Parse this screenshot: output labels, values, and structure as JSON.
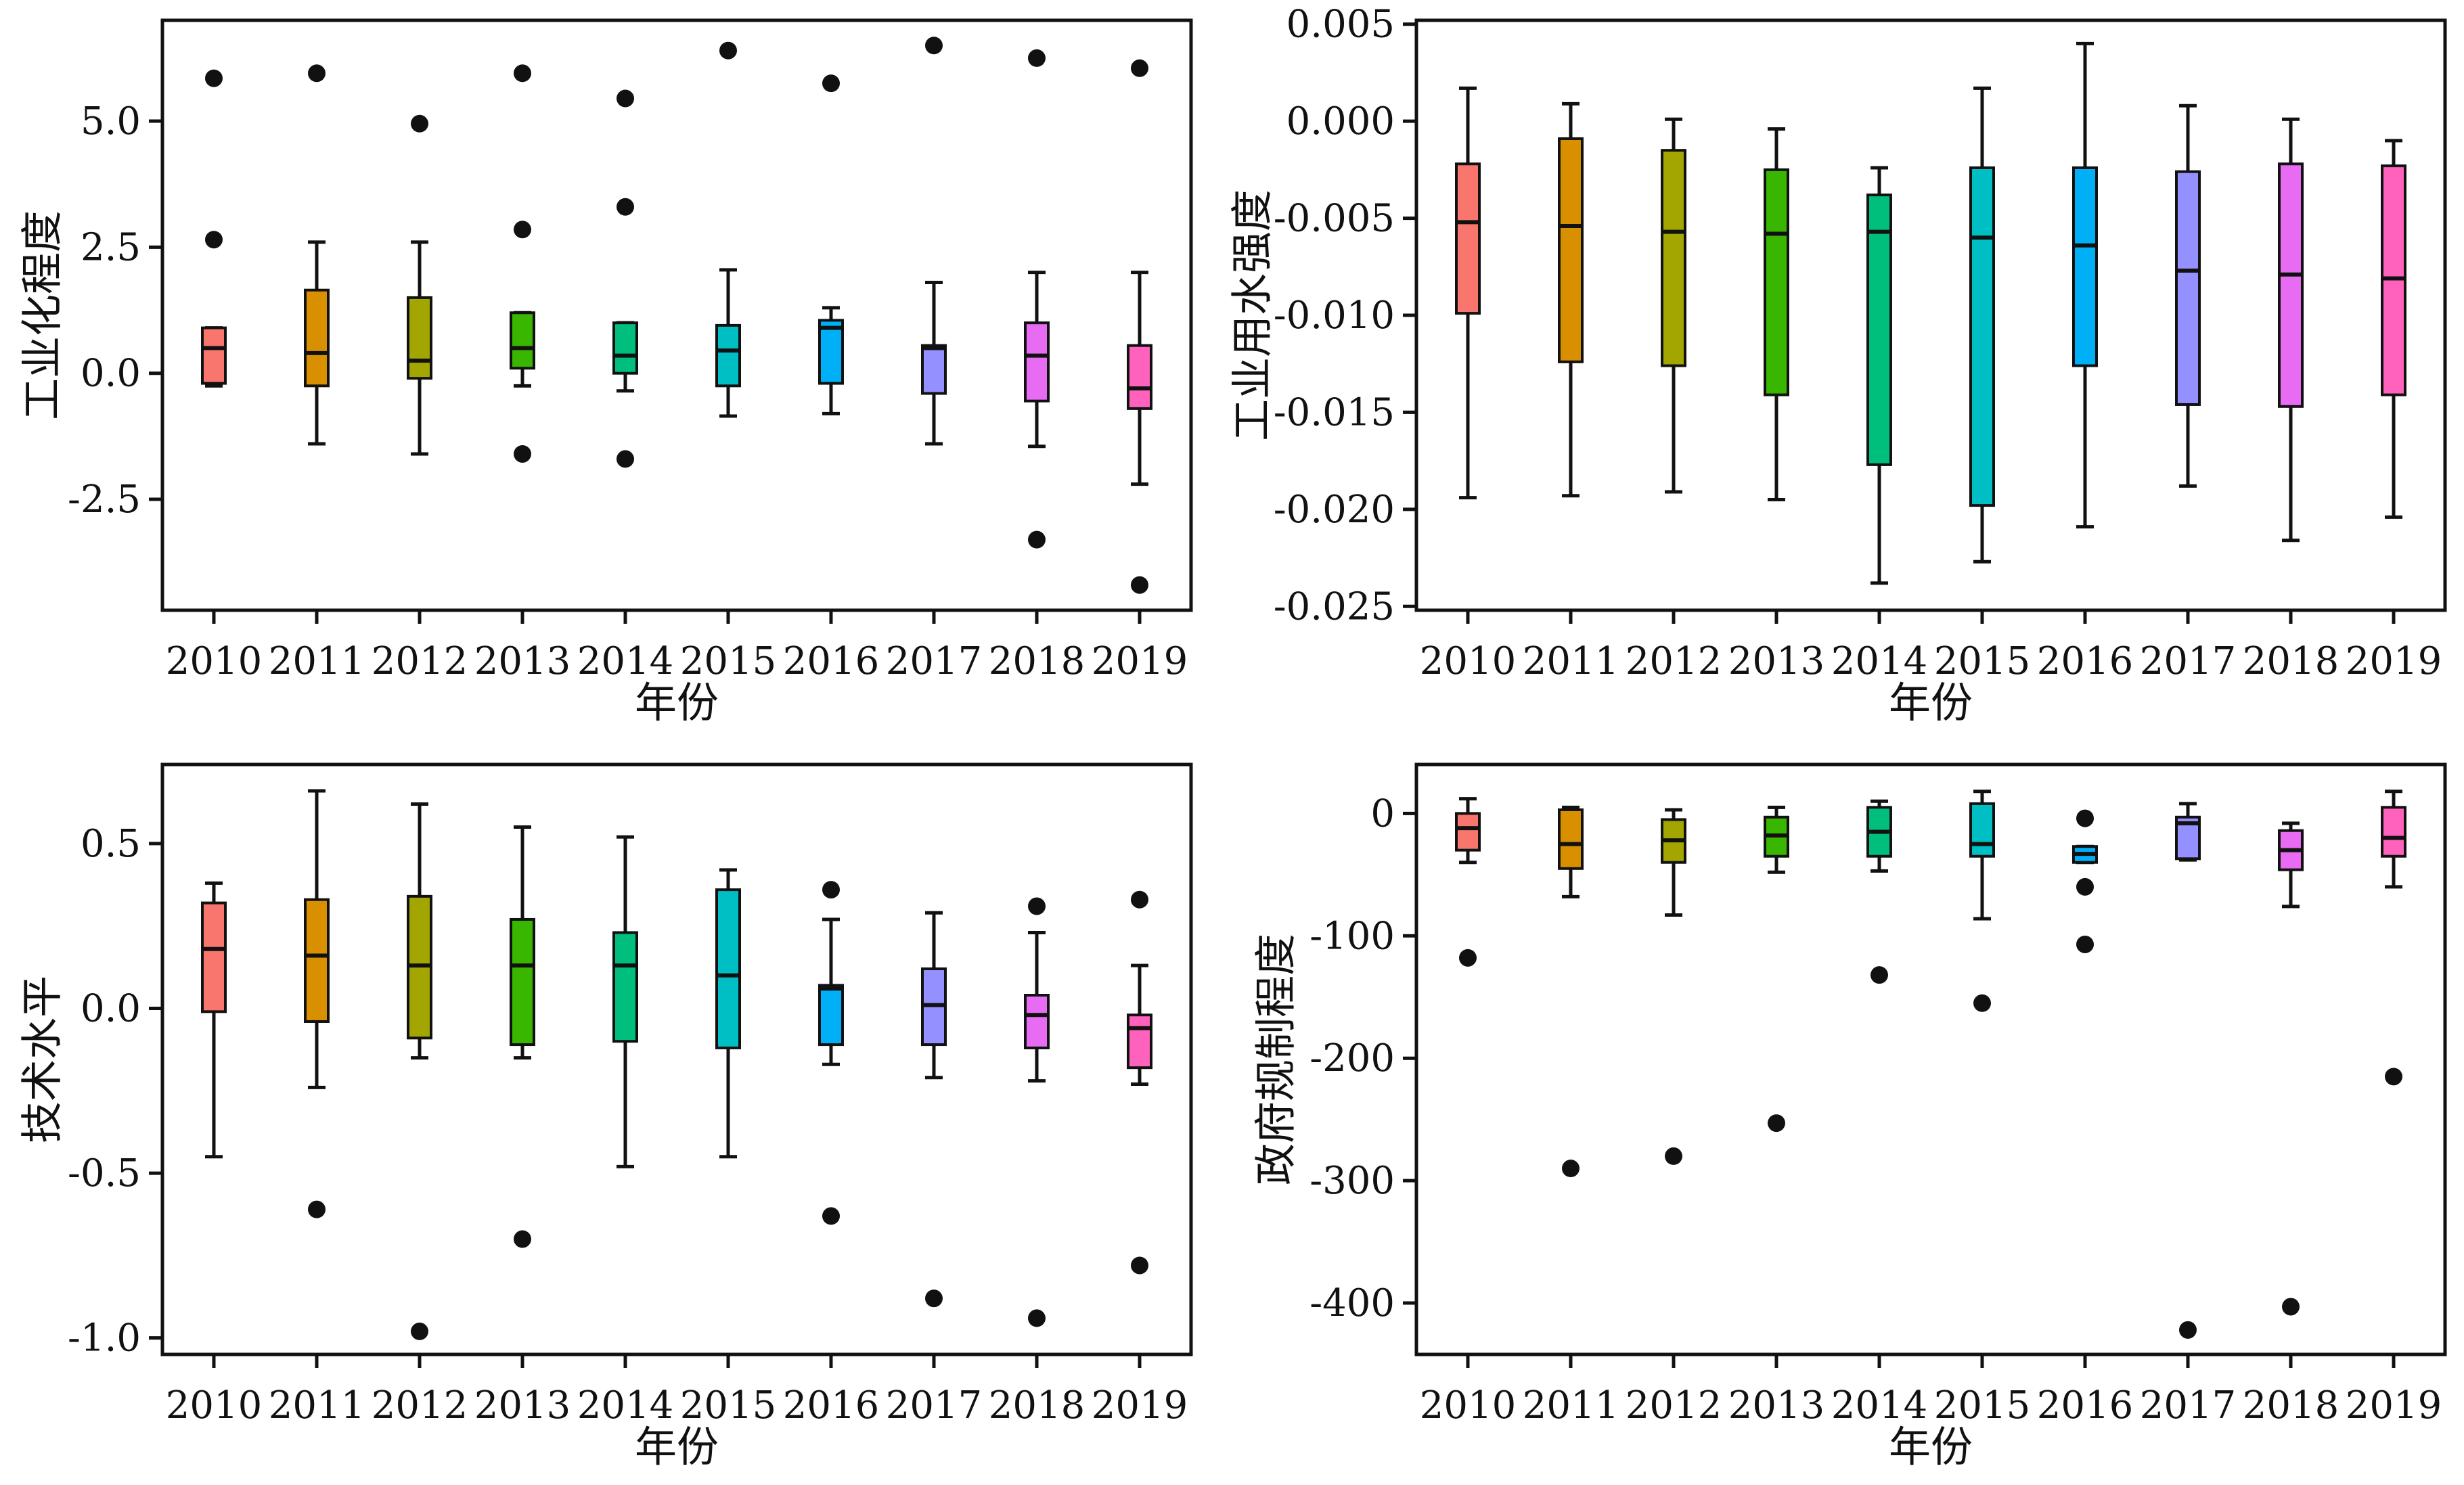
{
  "figure": {
    "palette": [
      "#F8766D",
      "#D89000",
      "#A3A500",
      "#39B600",
      "#00BF7D",
      "#00BFC4",
      "#00B0F6",
      "#9590FF",
      "#E76BF3",
      "#FF62BC"
    ]
  },
  "chart_data": [
    {
      "type": "box",
      "xlabel": "年份",
      "ylabel": "工业化程度",
      "categories": [
        "2010",
        "2011",
        "2012",
        "2013",
        "2014",
        "2015",
        "2016",
        "2017",
        "2018",
        "2019"
      ],
      "ylim": [
        -4.7,
        7.0
      ],
      "yticks": [
        -2.5,
        0.0,
        2.5,
        5.0
      ],
      "ytick_labels": [
        "-2.5",
        "0.0",
        "2.5",
        "5.0"
      ],
      "boxes": [
        {
          "whislo": -0.25,
          "q1": -0.2,
          "med": 0.5,
          "q3": 0.9,
          "whishi": 0.9,
          "fliers": [
            2.65,
            5.85
          ]
        },
        {
          "whislo": -1.4,
          "q1": -0.25,
          "med": 0.4,
          "q3": 1.65,
          "whishi": 2.6,
          "fliers": [
            5.95
          ]
        },
        {
          "whislo": -1.6,
          "q1": -0.1,
          "med": 0.25,
          "q3": 1.5,
          "whishi": 2.6,
          "fliers": [
            4.95
          ]
        },
        {
          "whislo": -0.25,
          "q1": 0.1,
          "med": 0.5,
          "q3": 1.2,
          "whishi": 1.2,
          "fliers": [
            -1.6,
            2.85,
            5.95
          ]
        },
        {
          "whislo": -0.35,
          "q1": 0.0,
          "med": 0.35,
          "q3": 1.0,
          "whishi": 1.0,
          "fliers": [
            -1.7,
            3.3,
            5.45
          ]
        },
        {
          "whislo": -0.85,
          "q1": -0.25,
          "med": 0.45,
          "q3": 0.95,
          "whishi": 2.05,
          "fliers": [
            6.4
          ]
        },
        {
          "whislo": -0.8,
          "q1": -0.2,
          "med": 0.9,
          "q3": 1.05,
          "whishi": 1.3,
          "fliers": [
            5.75
          ]
        },
        {
          "whislo": -1.4,
          "q1": -0.4,
          "med": 0.5,
          "q3": 0.55,
          "whishi": 1.8,
          "fliers": [
            6.5
          ]
        },
        {
          "whislo": -1.45,
          "q1": -0.55,
          "med": 0.35,
          "q3": 1.0,
          "whishi": 2.0,
          "fliers": [
            -3.3,
            6.25
          ]
        },
        {
          "whislo": -2.2,
          "q1": -0.7,
          "med": -0.3,
          "q3": 0.55,
          "whishi": 2.0,
          "fliers": [
            -4.2,
            6.05
          ]
        }
      ]
    },
    {
      "type": "box",
      "xlabel": "年份",
      "ylabel": "工业用水强度",
      "categories": [
        "2010",
        "2011",
        "2012",
        "2013",
        "2014",
        "2015",
        "2016",
        "2017",
        "2018",
        "2019"
      ],
      "ylim": [
        -0.0252,
        0.0052
      ],
      "yticks": [
        -0.025,
        -0.02,
        -0.015,
        -0.01,
        -0.005,
        0.0,
        0.005
      ],
      "ytick_labels": [
        "-0.025",
        "-0.020",
        "-0.015",
        "-0.010",
        "-0.005",
        "0.000",
        "0.005"
      ],
      "boxes": [
        {
          "whislo": -0.0194,
          "q1": -0.0099,
          "med": -0.0052,
          "q3": -0.0022,
          "whishi": 0.0017,
          "fliers": []
        },
        {
          "whislo": -0.0193,
          "q1": -0.0124,
          "med": -0.0054,
          "q3": -0.0009,
          "whishi": 0.0009,
          "fliers": []
        },
        {
          "whislo": -0.0191,
          "q1": -0.0126,
          "med": -0.0057,
          "q3": -0.0015,
          "whishi": 0.0001,
          "fliers": []
        },
        {
          "whislo": -0.0195,
          "q1": -0.0141,
          "med": -0.0058,
          "q3": -0.0025,
          "whishi": -0.0004,
          "fliers": []
        },
        {
          "whislo": -0.0238,
          "q1": -0.0177,
          "med": -0.0057,
          "q3": -0.0038,
          "whishi": -0.0024,
          "fliers": []
        },
        {
          "whislo": -0.0227,
          "q1": -0.0198,
          "med": -0.006,
          "q3": -0.0024,
          "whishi": 0.0017,
          "fliers": []
        },
        {
          "whislo": -0.0209,
          "q1": -0.0126,
          "med": -0.0064,
          "q3": -0.0024,
          "whishi": 0.004,
          "fliers": []
        },
        {
          "whislo": -0.0188,
          "q1": -0.0146,
          "med": -0.0077,
          "q3": -0.0026,
          "whishi": 0.0008,
          "fliers": []
        },
        {
          "whislo": -0.0216,
          "q1": -0.0147,
          "med": -0.0079,
          "q3": -0.0022,
          "whishi": 0.0001,
          "fliers": []
        },
        {
          "whislo": -0.0204,
          "q1": -0.0141,
          "med": -0.0081,
          "q3": -0.0023,
          "whishi": -0.001,
          "fliers": []
        }
      ]
    },
    {
      "type": "box",
      "xlabel": "年份",
      "ylabel": "技术水平",
      "categories": [
        "2010",
        "2011",
        "2012",
        "2013",
        "2014",
        "2015",
        "2016",
        "2017",
        "2018",
        "2019"
      ],
      "ylim": [
        -1.05,
        0.74
      ],
      "yticks": [
        -1.0,
        -0.5,
        0.0,
        0.5
      ],
      "ytick_labels": [
        "-1.0",
        "-0.5",
        "0.0",
        "0.5"
      ],
      "boxes": [
        {
          "whislo": -0.45,
          "q1": -0.01,
          "med": 0.18,
          "q3": 0.32,
          "whishi": 0.38,
          "fliers": []
        },
        {
          "whislo": -0.24,
          "q1": -0.04,
          "med": 0.16,
          "q3": 0.33,
          "whishi": 0.66,
          "fliers": [
            -0.61
          ]
        },
        {
          "whislo": -0.15,
          "q1": -0.09,
          "med": 0.13,
          "q3": 0.34,
          "whishi": 0.62,
          "fliers": [
            -0.98
          ]
        },
        {
          "whislo": -0.15,
          "q1": -0.11,
          "med": 0.13,
          "q3": 0.27,
          "whishi": 0.55,
          "fliers": [
            -0.7
          ]
        },
        {
          "whislo": -0.48,
          "q1": -0.1,
          "med": 0.13,
          "q3": 0.23,
          "whishi": 0.52,
          "fliers": []
        },
        {
          "whislo": -0.45,
          "q1": -0.12,
          "med": 0.1,
          "q3": 0.36,
          "whishi": 0.42,
          "fliers": []
        },
        {
          "whislo": -0.17,
          "q1": -0.11,
          "med": 0.06,
          "q3": 0.07,
          "whishi": 0.27,
          "fliers": [
            -0.63,
            0.36
          ]
        },
        {
          "whislo": -0.21,
          "q1": -0.11,
          "med": 0.01,
          "q3": 0.12,
          "whishi": 0.29,
          "fliers": [
            -0.88
          ]
        },
        {
          "whislo": -0.22,
          "q1": -0.12,
          "med": -0.02,
          "q3": 0.04,
          "whishi": 0.23,
          "fliers": [
            -0.94,
            0.31
          ]
        },
        {
          "whislo": -0.23,
          "q1": -0.18,
          "med": -0.06,
          "q3": -0.02,
          "whishi": 0.13,
          "fliers": [
            -0.78,
            0.33
          ]
        }
      ]
    },
    {
      "type": "box",
      "xlabel": "年份",
      "ylabel": "政府规制程度",
      "categories": [
        "2010",
        "2011",
        "2012",
        "2013",
        "2014",
        "2015",
        "2016",
        "2017",
        "2018",
        "2019"
      ],
      "ylim": [
        -442,
        40
      ],
      "yticks": [
        -400,
        -300,
        -200,
        -100,
        0
      ],
      "ytick_labels": [
        "-400",
        "-300",
        "-200",
        "-100",
        "0"
      ],
      "boxes": [
        {
          "whislo": -40,
          "q1": -30,
          "med": -12,
          "q3": 0,
          "whishi": 12,
          "fliers": [
            -118
          ]
        },
        {
          "whislo": -68,
          "q1": -45,
          "med": -25,
          "q3": 3,
          "whishi": 5,
          "fliers": [
            -290
          ]
        },
        {
          "whislo": -83,
          "q1": -40,
          "med": -22,
          "q3": -5,
          "whishi": 3,
          "fliers": [
            -280
          ]
        },
        {
          "whislo": -48,
          "q1": -35,
          "med": -18,
          "q3": -3,
          "whishi": 5,
          "fliers": [
            -253
          ]
        },
        {
          "whislo": -47,
          "q1": -35,
          "med": -15,
          "q3": 5,
          "whishi": 10,
          "fliers": [
            -132
          ]
        },
        {
          "whislo": -86,
          "q1": -35,
          "med": -25,
          "q3": 8,
          "whishi": 18,
          "fliers": [
            -155
          ]
        },
        {
          "whislo": -40,
          "q1": -40,
          "med": -33,
          "q3": -27,
          "whishi": -27,
          "fliers": [
            -4,
            -60,
            -107
          ]
        },
        {
          "whislo": -38,
          "q1": -37,
          "med": -8,
          "q3": -3,
          "whishi": 8,
          "fliers": [
            -422
          ]
        },
        {
          "whislo": -76,
          "q1": -46,
          "med": -30,
          "q3": -14,
          "whishi": -8,
          "fliers": [
            -403
          ]
        },
        {
          "whislo": -60,
          "q1": -35,
          "med": -20,
          "q3": 5,
          "whishi": 18,
          "fliers": [
            -215
          ]
        }
      ]
    }
  ]
}
